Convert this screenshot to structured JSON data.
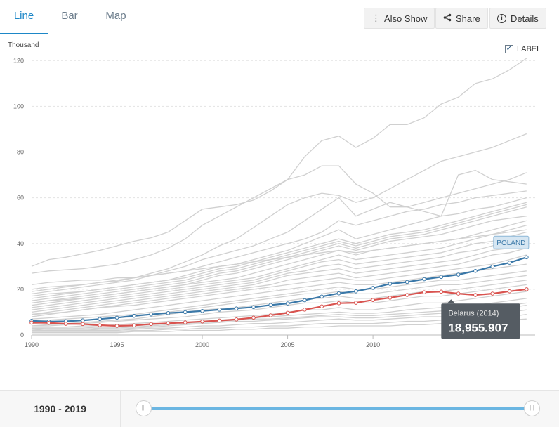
{
  "tabs": [
    {
      "label": "Line",
      "active": true
    },
    {
      "label": "Bar",
      "active": false
    },
    {
      "label": "Map",
      "active": false
    }
  ],
  "toolbar": {
    "also_show_label": "Also Show",
    "share_label": "Share",
    "details_label": "Details"
  },
  "label_toggle": {
    "label": "LABEL",
    "checked": true
  },
  "range": {
    "start": "1990",
    "end": "2019",
    "separator": "-"
  },
  "chart_data": {
    "type": "line",
    "ylabel": "Thousand",
    "xlim": [
      1990,
      2019.5
    ],
    "ylim": [
      0,
      125
    ],
    "x_ticks": [
      1990,
      1995,
      2000,
      2005,
      2010
    ],
    "y_ticks": [
      0,
      20,
      40,
      60,
      80,
      100,
      120
    ],
    "grid": "horizontal-dashed",
    "highlighted_series": [
      {
        "name": "POLAND",
        "color": "#3a78a8",
        "x": [
          1990,
          1991,
          1992,
          1993,
          1994,
          1995,
          1996,
          1997,
          1998,
          1999,
          2000,
          2001,
          2002,
          2003,
          2004,
          2005,
          2006,
          2007,
          2008,
          2009,
          2010,
          2011,
          2012,
          2013,
          2014,
          2015,
          2016,
          2017,
          2018,
          2019
        ],
        "values": [
          6.2,
          5.9,
          6.0,
          6.4,
          7.0,
          7.6,
          8.4,
          9.0,
          9.6,
          10.0,
          10.5,
          11.1,
          11.6,
          12.2,
          13.1,
          13.8,
          15.2,
          16.8,
          18.2,
          19.1,
          20.6,
          22.4,
          23.2,
          24.4,
          25.4,
          26.4,
          28.0,
          29.9,
          31.6,
          34.0
        ]
      },
      {
        "name": "Belarus",
        "color": "#d9534f",
        "x": [
          1990,
          1991,
          1992,
          1993,
          1994,
          1995,
          1996,
          1997,
          1998,
          1999,
          2000,
          2001,
          2002,
          2003,
          2004,
          2005,
          2006,
          2007,
          2008,
          2009,
          2010,
          2011,
          2012,
          2013,
          2014,
          2015,
          2016,
          2017,
          2018,
          2019
        ],
        "values": [
          5.4,
          5.3,
          4.9,
          4.8,
          4.3,
          4.0,
          4.2,
          4.8,
          5.1,
          5.5,
          5.9,
          6.3,
          6.8,
          7.6,
          8.6,
          9.7,
          11.1,
          12.5,
          13.9,
          14.1,
          15.3,
          16.3,
          17.5,
          18.7,
          18.96,
          18.1,
          17.5,
          18.1,
          19.1,
          20.0
        ]
      }
    ],
    "background_series": [
      [
        30,
        33,
        34,
        35.5,
        37,
        39,
        41,
        42.5,
        45,
        50,
        55,
        56,
        57,
        59,
        63,
        68,
        78,
        85,
        87,
        82,
        86,
        92,
        92,
        95,
        101,
        104,
        110,
        112,
        116,
        121
      ],
      [
        20,
        21,
        21.5,
        22,
        23,
        23.5,
        25,
        27,
        29,
        32,
        35,
        39,
        42,
        47,
        52,
        57,
        60,
        62,
        61,
        58,
        60,
        64,
        68,
        72,
        76,
        78,
        80,
        82,
        85,
        88
      ],
      [
        27,
        28,
        28.5,
        29,
        30,
        31,
        33,
        35,
        38,
        42,
        48,
        52,
        56,
        60,
        64,
        68,
        70,
        74,
        74,
        66,
        62,
        56,
        56,
        58,
        60,
        62,
        64,
        66,
        68,
        71
      ],
      [
        18,
        19,
        20,
        21,
        22,
        23,
        24,
        26,
        28,
        30,
        33,
        35,
        37,
        39,
        42,
        45,
        50,
        55,
        60,
        52,
        55,
        58,
        56,
        54,
        52,
        70,
        72,
        68,
        67,
        66
      ],
      [
        19,
        20,
        21,
        22,
        23,
        24,
        25,
        26,
        27,
        28,
        30,
        32,
        34,
        36,
        38,
        40,
        42,
        45,
        50,
        48,
        50,
        52,
        54,
        55,
        57,
        58,
        60,
        61,
        62,
        63
      ],
      [
        17,
        18,
        18.5,
        19,
        20,
        21,
        22,
        23,
        24,
        26,
        28,
        30,
        31,
        33,
        35,
        37,
        40,
        43,
        46,
        42,
        44,
        46,
        48,
        50,
        52,
        53,
        55,
        56,
        58,
        60
      ],
      [
        16,
        17,
        18,
        19,
        20,
        21,
        22,
        23,
        24,
        25,
        27,
        29,
        30,
        32,
        34,
        36,
        38,
        40,
        42,
        40,
        42,
        44,
        45,
        46,
        48,
        50,
        52,
        54,
        56,
        58
      ],
      [
        15,
        16,
        17,
        18,
        19,
        20,
        21,
        22,
        23,
        24,
        26,
        28,
        29,
        31,
        33,
        35,
        37,
        39,
        41,
        39,
        41,
        43,
        44,
        45,
        47,
        49,
        51,
        53,
        55,
        57
      ],
      [
        14,
        15,
        16,
        17,
        18,
        19,
        20,
        21,
        22,
        23,
        25,
        27,
        28,
        30,
        32,
        34,
        36,
        38,
        40,
        38,
        40,
        42,
        43,
        44,
        46,
        48,
        50,
        52,
        54,
        56
      ],
      [
        14,
        15,
        15.5,
        16,
        17,
        18,
        19,
        20,
        21,
        22,
        24,
        26,
        27,
        29,
        31,
        33,
        35,
        37,
        39,
        37,
        39,
        41,
        42,
        43,
        44,
        46,
        48,
        50,
        51,
        52
      ],
      [
        13,
        14,
        15,
        16,
        17,
        18,
        19,
        20,
        21,
        22,
        23,
        24,
        25,
        27,
        29,
        31,
        33,
        35,
        37,
        35,
        37,
        38,
        39,
        40,
        41,
        42,
        44,
        46,
        48,
        50
      ],
      [
        12,
        13,
        14,
        15,
        16,
        17,
        18,
        19,
        20,
        21,
        22,
        23,
        24,
        25,
        27,
        29,
        31,
        33,
        35,
        33,
        34,
        35,
        36,
        37,
        38,
        40,
        42,
        44,
        46,
        48
      ],
      [
        11,
        12,
        13,
        14,
        15,
        16,
        17,
        18,
        19,
        20,
        21,
        22,
        23,
        24,
        26,
        28,
        30,
        32,
        33,
        31,
        32,
        33,
        34,
        35,
        36,
        38,
        40,
        41,
        43,
        45
      ],
      [
        10,
        11,
        12,
        13,
        14,
        15,
        16,
        17,
        18,
        19,
        20,
        21,
        22,
        23,
        25,
        27,
        28,
        30,
        31,
        29,
        30,
        31,
        32,
        33,
        34,
        36,
        37,
        39,
        41,
        43
      ],
      [
        9,
        10,
        11,
        12,
        13,
        14,
        15,
        16,
        17,
        18,
        19,
        20,
        21,
        22,
        24,
        26,
        27,
        28,
        29,
        27,
        28,
        29,
        30,
        31,
        32,
        33,
        35,
        37,
        38,
        40
      ],
      [
        8,
        9,
        10,
        11,
        12,
        13,
        14,
        15,
        16,
        17,
        18,
        19,
        20,
        21,
        22,
        24,
        25,
        26,
        27,
        25,
        26,
        27,
        28,
        29,
        30,
        31,
        33,
        35,
        36,
        38
      ],
      [
        9,
        9.5,
        10,
        11,
        12,
        12.5,
        13,
        14,
        15,
        16,
        17,
        18,
        19,
        20,
        21,
        22,
        23,
        24,
        25,
        24,
        24,
        25,
        26,
        27,
        28,
        29,
        30,
        31,
        33,
        35
      ],
      [
        7,
        7.5,
        8,
        8.5,
        9,
        10,
        11,
        12,
        13,
        14,
        15,
        16,
        17,
        18,
        19,
        20,
        21,
        22,
        23,
        22,
        22,
        23,
        24,
        25,
        26,
        27,
        28,
        29,
        30,
        31
      ],
      [
        6,
        6.5,
        7,
        7.5,
        8,
        8.5,
        9,
        10,
        11,
        12,
        13,
        14,
        15,
        16,
        17,
        18,
        19,
        20,
        21,
        20,
        20,
        21,
        22,
        23,
        24,
        24,
        25,
        26,
        27,
        28
      ],
      [
        5,
        5.5,
        6,
        6.5,
        7,
        7.5,
        8,
        9,
        10,
        11,
        12,
        13,
        14,
        15,
        16,
        17,
        18,
        18,
        19,
        18,
        18,
        19,
        20,
        21,
        22,
        22,
        23,
        24,
        25,
        26
      ],
      [
        4,
        4.5,
        5,
        5.5,
        6,
        6.5,
        7,
        8,
        9,
        10,
        11,
        11.5,
        12,
        13,
        14,
        15,
        16,
        16,
        17,
        16,
        16,
        17,
        18,
        19,
        19,
        20,
        21,
        22,
        23,
        24
      ],
      [
        4,
        4,
        4.5,
        5,
        5.5,
        6,
        6.5,
        7,
        7.5,
        8,
        9,
        10,
        10.5,
        11,
        12,
        13,
        14,
        14,
        15,
        14,
        14,
        15,
        16,
        17,
        17,
        18,
        19,
        20,
        21,
        22
      ],
      [
        3.5,
        3.5,
        3.5,
        4,
        4,
        4.5,
        5,
        5.5,
        6,
        6.5,
        7,
        7.5,
        8,
        8.5,
        9,
        10,
        11,
        11,
        12,
        11,
        11,
        12,
        13,
        14,
        14,
        15,
        16,
        17,
        18,
        19
      ],
      [
        3,
        3,
        3,
        3,
        3.5,
        3.5,
        4,
        4.5,
        5,
        5.5,
        6,
        6.5,
        7,
        7.5,
        8,
        8.5,
        9,
        9.5,
        10,
        9.5,
        9.5,
        10,
        11,
        11.5,
        12,
        12.5,
        13,
        14,
        15,
        16
      ],
      [
        3,
        2.5,
        2.5,
        2.5,
        3,
        3,
        3.5,
        4,
        4.5,
        5,
        5.5,
        6,
        6.5,
        7,
        7,
        7.5,
        8,
        8.5,
        9,
        8.5,
        8.5,
        9,
        9.5,
        10,
        10.5,
        11,
        11.5,
        12,
        13,
        14
      ],
      [
        2.5,
        2,
        2,
        2,
        2.5,
        2.5,
        3,
        3.5,
        4,
        4.5,
        5,
        5.5,
        6,
        6,
        6.5,
        7,
        7.5,
        8,
        8,
        7.5,
        7.5,
        8,
        8.5,
        9,
        9.5,
        10,
        10.5,
        11,
        12,
        13
      ],
      [
        2,
        2,
        2,
        2,
        2,
        2,
        2.5,
        3,
        3,
        3.5,
        4,
        4,
        4.5,
        5,
        5,
        5.5,
        6,
        6.5,
        7,
        6.5,
        6.5,
        7,
        7.5,
        8,
        8,
        8.5,
        9,
        9.5,
        10,
        11
      ],
      [
        1.5,
        1.5,
        1.5,
        1.5,
        1.5,
        1.5,
        2,
        2,
        2.5,
        2.5,
        3,
        3,
        3.5,
        3.5,
        4,
        4,
        4.5,
        5,
        5,
        5,
        5,
        5.5,
        6,
        6,
        6.5,
        7,
        7,
        7.5,
        8,
        9
      ],
      [
        1,
        1,
        1,
        1,
        1,
        1,
        1.5,
        1.5,
        1.5,
        2,
        2,
        2,
        2.5,
        2.5,
        3,
        3,
        3.5,
        3.5,
        4,
        4,
        4,
        4,
        4.5,
        4.5,
        5,
        5,
        5.5,
        6,
        6.5,
        7
      ],
      [
        22,
        23,
        23.5,
        24,
        24,
        25,
        25,
        26,
        27,
        28,
        29,
        30,
        31,
        32,
        33,
        34,
        35,
        36,
        37,
        36,
        37,
        38,
        39,
        40,
        41,
        42,
        43,
        44,
        45,
        46
      ]
    ],
    "tooltip": {
      "title": "Belarus (2014)",
      "value": "18,955.907",
      "x": 2014,
      "y": 18.96
    }
  }
}
